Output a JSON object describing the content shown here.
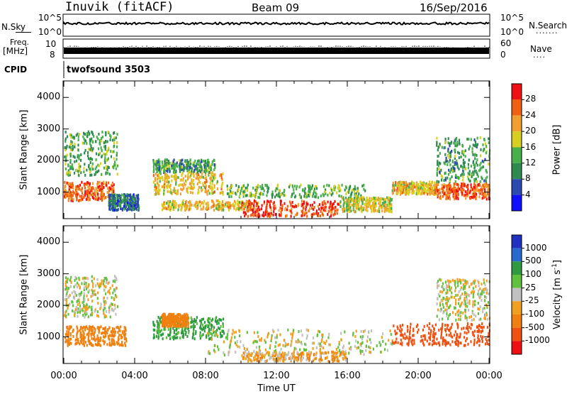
{
  "header": {
    "title": "Inuvik (fitACF)",
    "beam": "Beam 09",
    "date": "16/Sep/2016"
  },
  "strip_nsky": {
    "left_label": "N.Sky",
    "right_label": "N.Search",
    "ticks_left": [
      "10^5",
      "10^0"
    ],
    "ticks_right": [
      "10^5",
      "10^0"
    ]
  },
  "strip_freq": {
    "left_label_1": "Freq.",
    "left_label_2": "[MHz]",
    "right_label": "Nave",
    "ticks_left": [
      "10",
      "8"
    ],
    "ticks_right": [
      "60",
      "0"
    ]
  },
  "strip_cpid": {
    "label": "CPID",
    "value": "twofsound 3503"
  },
  "time_axis": {
    "label": "Time UT",
    "ticks": [
      "00:00",
      "04:00",
      "08:00",
      "12:00",
      "16:00",
      "20:00",
      "00:00"
    ]
  },
  "chart_data": [
    {
      "type": "heatmap",
      "quantity": "Power",
      "ylabel": "Slant Range [km]",
      "colorbar_label": "Power [dB]",
      "xlim_hours": [
        0,
        24
      ],
      "ylim": [
        180,
        4500
      ],
      "yticks": [
        1000,
        2000,
        3000,
        4000
      ],
      "colorbar_ticks": [
        "4",
        "8",
        "12",
        "16",
        "20",
        "24",
        "28"
      ],
      "colorbar_colors": [
        "#1010ff",
        "#2a4ab0",
        "#2f8a50",
        "#48b04a",
        "#d8d020",
        "#f0a030",
        "#f06010",
        "#ee1010"
      ],
      "regions": [
        {
          "t": [
            0,
            2.8
          ],
          "r": [
            700,
            1300
          ],
          "value": 26
        },
        {
          "t": [
            0,
            3
          ],
          "r": [
            1500,
            2900
          ],
          "value": 13
        },
        {
          "t": [
            2.5,
            4.2
          ],
          "r": [
            400,
            900
          ],
          "value": 8
        },
        {
          "t": [
            5,
            9
          ],
          "r": [
            900,
            1600
          ],
          "value": 20
        },
        {
          "t": [
            5,
            8.5
          ],
          "r": [
            1600,
            2000
          ],
          "value": 12
        },
        {
          "t": [
            5.5,
            11
          ],
          "r": [
            400,
            700
          ],
          "value": 20
        },
        {
          "t": [
            9,
            17
          ],
          "r": [
            800,
            1200
          ],
          "value": 14
        },
        {
          "t": [
            10,
            15.5
          ],
          "r": [
            200,
            700
          ],
          "value": 28
        },
        {
          "t": [
            15.5,
            18.5
          ],
          "r": [
            350,
            800
          ],
          "value": 18
        },
        {
          "t": [
            18.5,
            21
          ],
          "r": [
            900,
            1300
          ],
          "value": 20
        },
        {
          "t": [
            21,
            24
          ],
          "r": [
            750,
            1250
          ],
          "value": 26
        },
        {
          "t": [
            21,
            24
          ],
          "r": [
            1300,
            2700
          ],
          "value": 12
        }
      ]
    },
    {
      "type": "heatmap",
      "quantity": "Velocity",
      "ylabel": "Slant Range [km]",
      "colorbar_label": "Velocity [m s^-1]",
      "xlim_hours": [
        0,
        24
      ],
      "ylim": [
        180,
        4500
      ],
      "yticks": [
        1000,
        2000,
        3000,
        4000
      ],
      "colorbar_ticks": [
        "1000",
        "500",
        "100",
        "25",
        "-25",
        "-100",
        "-500",
        "-1000"
      ],
      "colorbar_colors": [
        "#2030c0",
        "#2a6ad0",
        "#2f9a40",
        "#60c040",
        "#c0c0c0",
        "#f0a020",
        "#f08010",
        "#f05010",
        "#ee1010"
      ],
      "regions": [
        {
          "t": [
            0,
            3
          ],
          "r": [
            1600,
            2900
          ],
          "value": 0
        },
        {
          "t": [
            0,
            3.5
          ],
          "r": [
            700,
            1300
          ],
          "value": -300
        },
        {
          "t": [
            5,
            9
          ],
          "r": [
            900,
            1600
          ],
          "value": 150
        },
        {
          "t": [
            5.5,
            7
          ],
          "r": [
            1300,
            1700
          ],
          "value": -300
        },
        {
          "t": [
            8,
            18.5
          ],
          "r": [
            400,
            1200
          ],
          "value": 0
        },
        {
          "t": [
            10,
            16
          ],
          "r": [
            200,
            500
          ],
          "value": -80
        },
        {
          "t": [
            18.5,
            24
          ],
          "r": [
            700,
            1400
          ],
          "value": -600
        },
        {
          "t": [
            21,
            24
          ],
          "r": [
            1500,
            2800
          ],
          "value": 0
        }
      ]
    }
  ]
}
